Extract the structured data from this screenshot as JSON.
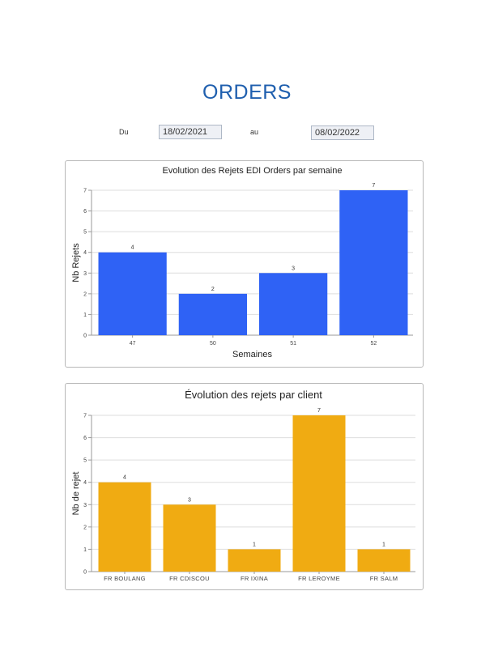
{
  "page": {
    "title": "ORDERS",
    "from_label": "Du",
    "from_date": "18/02/2021",
    "to_label": "au",
    "to_date": "08/02/2022"
  },
  "chart_data": [
    {
      "type": "bar",
      "title": "Evolution des Rejets EDI Orders par semaine",
      "xlabel": "Semaines",
      "ylabel": "Nb Rejets",
      "categories": [
        "47",
        "50",
        "51",
        "52"
      ],
      "values": [
        4,
        2,
        3,
        7
      ],
      "ylim": [
        0,
        7
      ],
      "yticks": [
        0,
        1,
        2,
        3,
        4,
        5,
        6,
        7
      ],
      "color": "#2f62f5",
      "grid": true,
      "data_labels": true
    },
    {
      "type": "bar",
      "title": "Évolution des rejets par client",
      "xlabel": "",
      "ylabel": "Nb de rejet",
      "categories": [
        "FR BOULANG",
        "FR CDISCOU",
        "FR IXINA",
        "FR LEROYME",
        "FR SALM"
      ],
      "values": [
        4,
        3,
        1,
        7,
        1
      ],
      "ylim": [
        0,
        7
      ],
      "yticks": [
        0,
        1,
        2,
        3,
        4,
        5,
        6,
        7
      ],
      "color": "#f0ab12",
      "grid": true,
      "data_labels": true
    }
  ]
}
